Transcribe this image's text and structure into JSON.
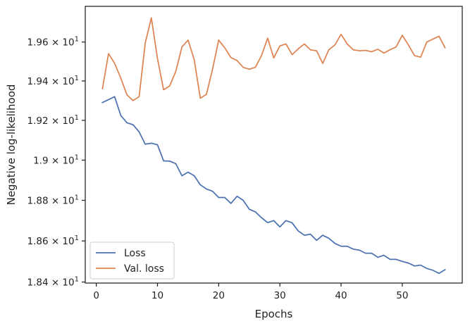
{
  "chart_data": {
    "type": "line",
    "title": "",
    "xlabel": "Epochs",
    "ylabel": "Negative log-likelihood",
    "xlim": [
      -1.8,
      59.8
    ],
    "ylim": [
      18.395,
      19.785
    ],
    "y_scale": "log",
    "grid": false,
    "legend_position": "lower-left",
    "x_ticks": [
      0,
      10,
      20,
      30,
      40,
      50
    ],
    "x_tick_labels": [
      "0",
      "10",
      "20",
      "30",
      "40",
      "50"
    ],
    "y_ticks": [
      18.4,
      18.6,
      18.8,
      19.0,
      19.2,
      19.4,
      19.6
    ],
    "y_tick_labels": [
      {
        "mantissa": "1.84",
        "exp": "1"
      },
      {
        "mantissa": "1.86",
        "exp": "1"
      },
      {
        "mantissa": "1.88",
        "exp": "1"
      },
      {
        "mantissa": "1.9",
        "exp": "1"
      },
      {
        "mantissa": "1.92",
        "exp": "1"
      },
      {
        "mantissa": "1.94",
        "exp": "1"
      },
      {
        "mantissa": "1.96",
        "exp": "1"
      }
    ],
    "x": [
      1,
      2,
      3,
      4,
      5,
      6,
      7,
      8,
      9,
      10,
      11,
      12,
      13,
      14,
      15,
      16,
      17,
      18,
      19,
      20,
      21,
      22,
      23,
      24,
      25,
      26,
      27,
      28,
      29,
      30,
      31,
      32,
      33,
      34,
      35,
      36,
      37,
      38,
      39,
      40,
      41,
      42,
      43,
      44,
      45,
      46,
      47,
      48,
      49,
      50,
      51,
      52,
      53,
      54,
      55,
      56,
      57
    ],
    "series": [
      {
        "name": "Loss",
        "color": "#4c72b0",
        "values": [
          19.29,
          19.305,
          19.32,
          19.225,
          19.188,
          19.178,
          19.142,
          19.08,
          19.085,
          19.077,
          18.996,
          18.995,
          18.982,
          18.922,
          18.94,
          18.922,
          18.877,
          18.856,
          18.845,
          18.814,
          18.814,
          18.785,
          18.82,
          18.8,
          18.756,
          18.743,
          18.714,
          18.69,
          18.7,
          18.669,
          18.7,
          18.689,
          18.649,
          18.628,
          18.633,
          18.603,
          18.628,
          18.613,
          18.588,
          18.574,
          18.574,
          18.56,
          18.555,
          18.54,
          18.54,
          18.52,
          18.53,
          18.51,
          18.51,
          18.5,
          18.492,
          18.478,
          18.482,
          18.466,
          18.457,
          18.442,
          18.46
        ]
      },
      {
        "name": "Val. loss",
        "color": "#dd8452",
        "values": [
          19.36,
          19.54,
          19.49,
          19.415,
          19.33,
          19.3,
          19.32,
          19.595,
          19.725,
          19.515,
          19.355,
          19.375,
          19.45,
          19.575,
          19.61,
          19.51,
          19.312,
          19.332,
          19.46,
          19.61,
          19.57,
          19.52,
          19.505,
          19.47,
          19.46,
          19.47,
          19.53,
          19.62,
          19.518,
          19.58,
          19.59,
          19.535,
          19.565,
          19.59,
          19.56,
          19.555,
          19.49,
          19.56,
          19.585,
          19.64,
          19.59,
          19.56,
          19.555,
          19.557,
          19.55,
          19.563,
          19.543,
          19.56,
          19.575,
          19.635,
          19.585,
          19.53,
          19.522,
          19.6,
          19.615,
          19.63,
          19.57
        ]
      }
    ]
  }
}
